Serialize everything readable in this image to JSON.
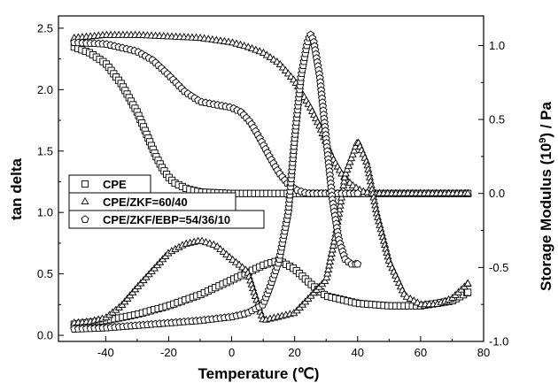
{
  "chart_data": {
    "type": "scatter",
    "title": "",
    "xlabel": "Temperature (℃)",
    "ylabel_left": "tan delta",
    "ylabel_right": "Storage Modulus (10",
    "ylabel_right_sup": "9",
    "ylabel_right_suffix": ") / Pa",
    "xlim": [
      -55,
      80
    ],
    "ylim_left": [
      -0.05,
      2.6
    ],
    "ylim_right": [
      -1.0,
      1.2
    ],
    "x_ticks": [
      -40,
      -20,
      0,
      20,
      40,
      60,
      80
    ],
    "x_tick_labels": [
      "-40",
      "-20",
      "0",
      "20",
      "40",
      "60",
      "80"
    ],
    "y_left_ticks": [
      0.0,
      0.5,
      1.0,
      1.5,
      2.0,
      2.5
    ],
    "y_left_tick_labels": [
      "0.0",
      "0.5",
      "1.0",
      "1.5",
      "2.0",
      "2.5"
    ],
    "y_right_ticks": [
      -1.0,
      -0.5,
      0.0,
      0.5,
      1.0
    ],
    "y_right_tick_labels": [
      "-1.0",
      "-0.5",
      "0.0",
      "0.5",
      "1.0"
    ],
    "legend": {
      "position": "center-left",
      "entries": [
        {
          "label": "CPE",
          "marker": "square"
        },
        {
          "label": "CPE/ZKF=60/40",
          "marker": "triangle"
        },
        {
          "label": "CPE/ZKF/EBP=54/36/10",
          "marker": "pentagon"
        }
      ]
    },
    "series": [
      {
        "name": "CPE",
        "kind": "storage_modulus",
        "axis": "right",
        "marker": "square",
        "x": [
          -50,
          -45,
          -40,
          -35,
          -30,
          -28,
          -26,
          -24,
          -22,
          -20,
          -18,
          -16,
          -14,
          -12,
          -10,
          0,
          20,
          40,
          60,
          75
        ],
        "y": [
          0.99,
          0.95,
          0.88,
          0.74,
          0.55,
          0.45,
          0.35,
          0.25,
          0.17,
          0.11,
          0.07,
          0.05,
          0.03,
          0.02,
          0.01,
          0.0,
          0.0,
          0.0,
          0.0,
          0.0
        ]
      },
      {
        "name": "CPE",
        "kind": "tan_delta",
        "axis": "left",
        "marker": "square",
        "x": [
          -50,
          -40,
          -30,
          -20,
          -10,
          0,
          10,
          15,
          20,
          25,
          30,
          40,
          50,
          60,
          70,
          75
        ],
        "y": [
          0.09,
          0.12,
          0.17,
          0.24,
          0.33,
          0.45,
          0.57,
          0.61,
          0.54,
          0.42,
          0.32,
          0.26,
          0.24,
          0.24,
          0.28,
          0.35
        ]
      },
      {
        "name": "CPE/ZKF=60/40",
        "kind": "storage_modulus",
        "axis": "right",
        "marker": "triangle",
        "x": [
          -50,
          -40,
          -30,
          -20,
          -10,
          0,
          5,
          10,
          15,
          20,
          25,
          28,
          30,
          32,
          35,
          38,
          40,
          42,
          45,
          50,
          60,
          75
        ],
        "y": [
          1.05,
          1.07,
          1.07,
          1.06,
          1.05,
          1.02,
          0.99,
          0.95,
          0.88,
          0.76,
          0.58,
          0.45,
          0.34,
          0.24,
          0.13,
          0.06,
          0.03,
          0.01,
          0.0,
          0.0,
          0.0,
          0.0
        ]
      },
      {
        "name": "CPE/ZKF=60/40",
        "kind": "tan_delta",
        "axis": "left",
        "marker": "triangle",
        "x": [
          -50,
          -45,
          -40,
          -35,
          -30,
          -25,
          -20,
          -15,
          -10,
          -5,
          0,
          5,
          10,
          20,
          30,
          33,
          36,
          40,
          43,
          46,
          50,
          55,
          60,
          65,
          70,
          75
        ],
        "y": [
          0.1,
          0.11,
          0.14,
          0.24,
          0.39,
          0.53,
          0.67,
          0.74,
          0.77,
          0.73,
          0.62,
          0.52,
          0.12,
          0.18,
          0.45,
          0.82,
          1.3,
          1.58,
          1.4,
          1.0,
          0.6,
          0.32,
          0.25,
          0.25,
          0.3,
          0.42
        ]
      },
      {
        "name": "CPE/ZKF/EBP=54/36/10",
        "kind": "storage_modulus",
        "axis": "right",
        "marker": "pentagon",
        "x": [
          -50,
          -40,
          -30,
          -25,
          -20,
          -15,
          -10,
          -5,
          0,
          3,
          6,
          9,
          12,
          15,
          18,
          21,
          24,
          27,
          30,
          35,
          40
        ],
        "y": [
          1.02,
          1.01,
          0.96,
          0.9,
          0.8,
          0.69,
          0.62,
          0.6,
          0.58,
          0.55,
          0.48,
          0.37,
          0.25,
          0.14,
          0.06,
          0.02,
          0.0,
          0.0,
          0.0,
          0.0,
          0.0
        ]
      },
      {
        "name": "CPE/ZKF/EBP=54/36/10",
        "kind": "tan_delta",
        "axis": "left",
        "marker": "pentagon",
        "x": [
          -50,
          -40,
          -30,
          -20,
          -10,
          0,
          5,
          10,
          12,
          15,
          18,
          20,
          22,
          24,
          25,
          26,
          28,
          30,
          32,
          34,
          36,
          38,
          40
        ],
        "y": [
          0.05,
          0.06,
          0.08,
          0.1,
          0.12,
          0.15,
          0.18,
          0.25,
          0.38,
          0.6,
          1.0,
          1.6,
          2.1,
          2.38,
          2.45,
          2.4,
          2.1,
          1.6,
          1.1,
          0.78,
          0.62,
          0.58,
          0.58
        ]
      }
    ]
  }
}
